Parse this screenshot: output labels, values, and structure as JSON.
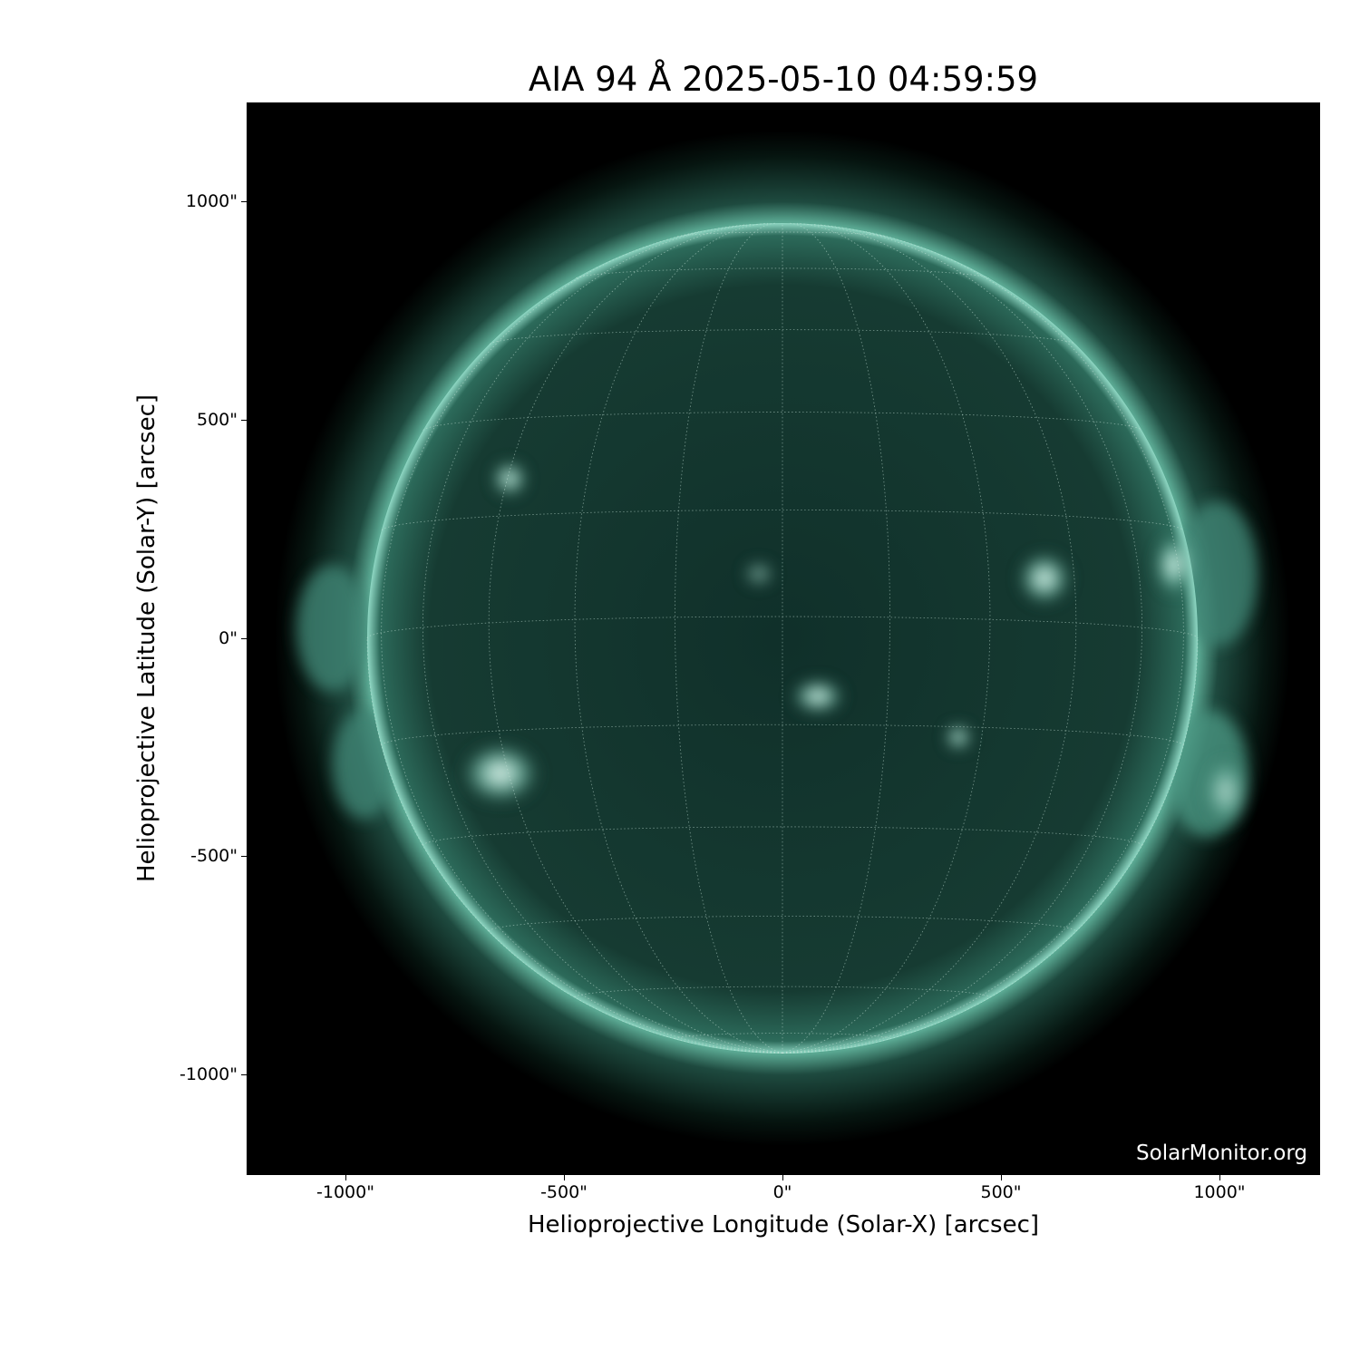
{
  "title": "AIA 94 Å 2025-05-10 04:59:59",
  "xlabel": "Helioprojective Longitude (Solar-X) [arcsec]",
  "ylabel": "Helioprojective Latitude (Solar-Y) [arcsec]",
  "xticks": [
    "-1000\"",
    "-500\"",
    "0\"",
    "500\"",
    "1000\""
  ],
  "yticks": [
    "1000\"",
    "500\"",
    "0\"",
    "-500\"",
    "-1000\""
  ],
  "watermark": "SolarMonitor.org",
  "colors": {
    "background": "#000000",
    "disk": "#0f2e26",
    "limb": "#7fcfb8",
    "flare": "#f0fff8"
  }
}
